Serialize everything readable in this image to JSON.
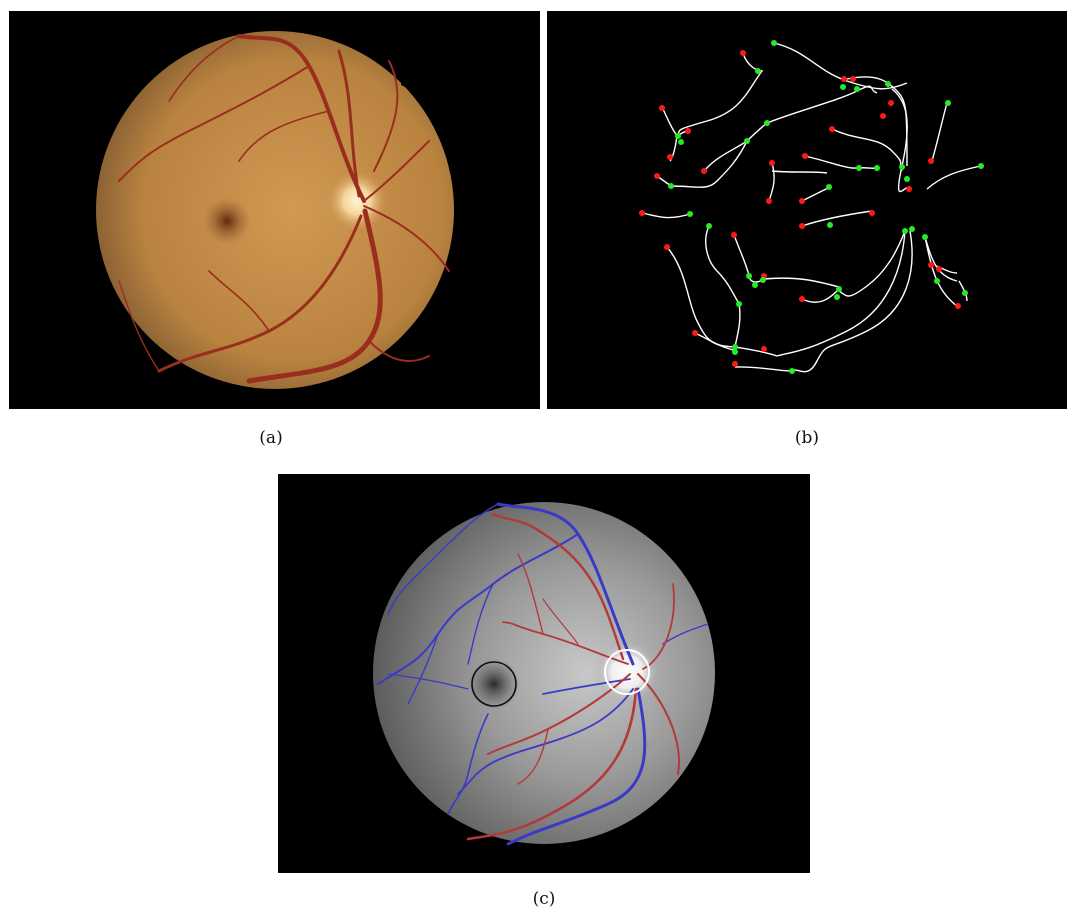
{
  "figure": {
    "captions": {
      "a": "(a)",
      "b": "(b)",
      "c": "(c)"
    }
  },
  "colors": {
    "background": "#000000",
    "fundus_orange": "#c88a45",
    "vessel_red": "#9a2e1e",
    "skeleton_white": "#ffffff",
    "endpoint_red": "#ff1a1a",
    "junction_green": "#22ee22",
    "artery_red": "#b33a3a",
    "vein_blue": "#3a3ac8",
    "fovea_circle": "#111111",
    "disc_circle": "#ffffff"
  }
}
